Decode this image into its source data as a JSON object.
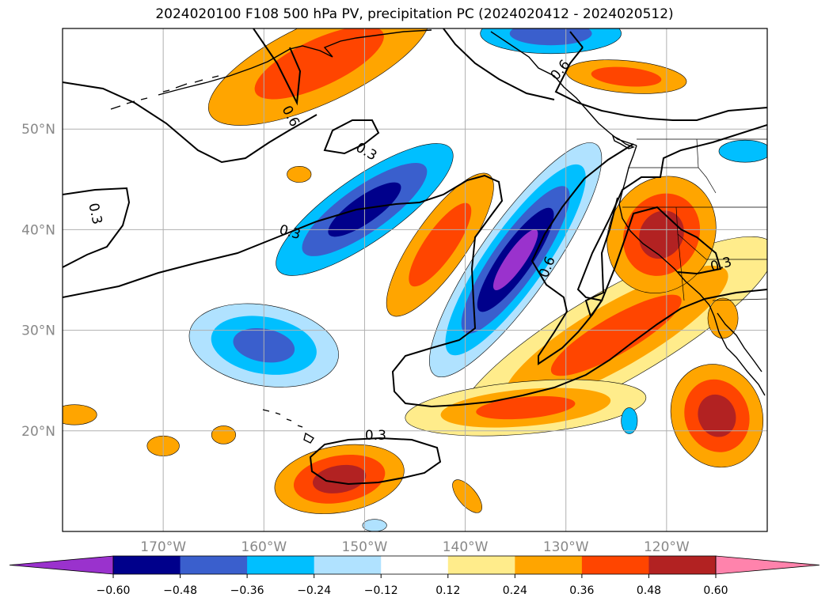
{
  "chart_data": {
    "type": "map",
    "title": "2024020100 F108 500 hPa PV, precipitation PC (2024020412 - 2024020512)",
    "lon_range": [
      -180,
      -110
    ],
    "lat_range": [
      10,
      60
    ],
    "lon_ticks": [
      -170,
      -160,
      -150,
      -140,
      -130,
      -120
    ],
    "lon_tick_labels": [
      "170°W",
      "160°W",
      "150°W",
      "140°W",
      "130°W",
      "120°W"
    ],
    "lat_ticks": [
      20,
      30,
      40,
      50
    ],
    "lat_tick_labels": [
      "20°N",
      "30°N",
      "40°N",
      "50°N"
    ],
    "grid": true,
    "colorbar": {
      "boundaries": [
        "−0.60",
        "−0.48",
        "−0.36",
        "−0.24",
        "−0.12",
        "0.12",
        "0.24",
        "0.36",
        "0.48",
        "0.60"
      ],
      "colors": [
        "#9a32cd",
        "#00008b",
        "#3a5fcd",
        "#00bfff",
        "#b0e2ff",
        "#ffffff",
        "#ffec8b",
        "#ffa500",
        "#ff4500",
        "#b22222",
        "#ff83ac"
      ],
      "extend": "both"
    },
    "contour_levels": [
      "0.3",
      "0.6"
    ],
    "contour_labels": [
      {
        "text": "0.6",
        "lon": -157.3,
        "lat": 51.3,
        "rot": -62
      },
      {
        "text": "0.3",
        "lon": -149.8,
        "lat": 47.8,
        "rot": -30
      },
      {
        "text": "0.3",
        "lon": -176.7,
        "lat": 41.6,
        "rot": -78
      },
      {
        "text": "0.3",
        "lon": -157.4,
        "lat": 39.8,
        "rot": -15
      },
      {
        "text": "0.6",
        "lon": -131.9,
        "lat": 36.3,
        "rot": 68
      },
      {
        "text": "0.3",
        "lon": -114.6,
        "lat": 36.6,
        "rot": 15
      },
      {
        "text": "0.3",
        "lon": -148.9,
        "lat": 19.6,
        "rot": 0
      },
      {
        "text": "0.6",
        "lon": -130.6,
        "lat": 55.9,
        "rot": 50
      }
    ],
    "precip_blobs": [
      {
        "lon": -154.5,
        "lat": 56.6,
        "rx": 12,
        "ry": 4,
        "rot": 25,
        "levels": [
          0.24,
          0.36
        ]
      },
      {
        "lon": -124,
        "lat": 55.2,
        "rx": 6,
        "ry": 1.6,
        "rot": -5,
        "levels": [
          0.24,
          0.36
        ]
      },
      {
        "lon": -142.5,
        "lat": 38.5,
        "rx": 8.5,
        "ry": 2.6,
        "rot": 55,
        "levels": [
          0.24,
          0.36
        ]
      },
      {
        "lon": -125,
        "lat": 29.5,
        "rx": 18,
        "ry": 4.5,
        "rot": 30,
        "levels": [
          0.12,
          0.24,
          0.36
        ]
      },
      {
        "lon": -134,
        "lat": 22.3,
        "rx": 12,
        "ry": 2.6,
        "rot": 5,
        "levels": [
          0.12,
          0.24,
          0.36
        ]
      },
      {
        "lon": -120.5,
        "lat": 39.5,
        "rx": 6,
        "ry": 5.2,
        "rot": 60,
        "levels": [
          0.24,
          0.36,
          0.48
        ]
      },
      {
        "lon": -115,
        "lat": 21.5,
        "rx": 4.5,
        "ry": 5.2,
        "rot": 20,
        "levels": [
          0.24,
          0.36,
          0.48
        ]
      },
      {
        "lon": -152.5,
        "lat": 15.2,
        "rx": 6.5,
        "ry": 3.3,
        "rot": 10,
        "levels": [
          0.24,
          0.36,
          0.48
        ]
      },
      {
        "lon": -178.8,
        "lat": 21.6,
        "rx": 2.2,
        "ry": 1,
        "rot": 0,
        "levels": [
          0.24
        ]
      },
      {
        "lon": -170,
        "lat": 18.5,
        "rx": 1.6,
        "ry": 1,
        "rot": 0,
        "levels": [
          0.24
        ]
      },
      {
        "lon": -164,
        "lat": 19.6,
        "rx": 1.2,
        "ry": 0.9,
        "rot": 0,
        "levels": [
          0.24
        ]
      },
      {
        "lon": -156.5,
        "lat": 45.5,
        "rx": 1.2,
        "ry": 0.8,
        "rot": 0,
        "levels": [
          0.24
        ]
      },
      {
        "lon": -139.8,
        "lat": 13.5,
        "rx": 2,
        "ry": 0.9,
        "rot": -50,
        "levels": [
          0.24
        ]
      },
      {
        "lon": -114.4,
        "lat": 31.2,
        "rx": 1.5,
        "ry": 2,
        "rot": 0,
        "levels": [
          0.24
        ]
      },
      {
        "lon": -135,
        "lat": 37,
        "rx": 14,
        "ry": 3.6,
        "rot": 55,
        "levels": [
          -0.12,
          -0.24,
          -0.36,
          -0.48,
          -0.6
        ]
      },
      {
        "lon": -150,
        "lat": 42,
        "rx": 10.5,
        "ry": 3.2,
        "rot": 35,
        "levels": [
          -0.24,
          -0.36,
          -0.48
        ]
      },
      {
        "lon": -160,
        "lat": 28.5,
        "rx": 7.5,
        "ry": 4,
        "rot": -10,
        "levels": [
          -0.12,
          -0.24,
          -0.36
        ]
      },
      {
        "lon": -131.5,
        "lat": 59.5,
        "rx": 7,
        "ry": 2,
        "rot": 0,
        "levels": [
          -0.24,
          -0.36
        ]
      },
      {
        "lon": -112.2,
        "lat": 47.8,
        "rx": 2.6,
        "ry": 1.1,
        "rot": 0,
        "levels": [
          -0.24
        ]
      },
      {
        "lon": -123.7,
        "lat": 21,
        "rx": 0.8,
        "ry": 1.3,
        "rot": 0,
        "levels": [
          -0.24
        ]
      },
      {
        "lon": -149,
        "lat": 10.6,
        "rx": 1.2,
        "ry": 0.6,
        "rot": 0,
        "levels": [
          -0.12
        ]
      }
    ]
  }
}
